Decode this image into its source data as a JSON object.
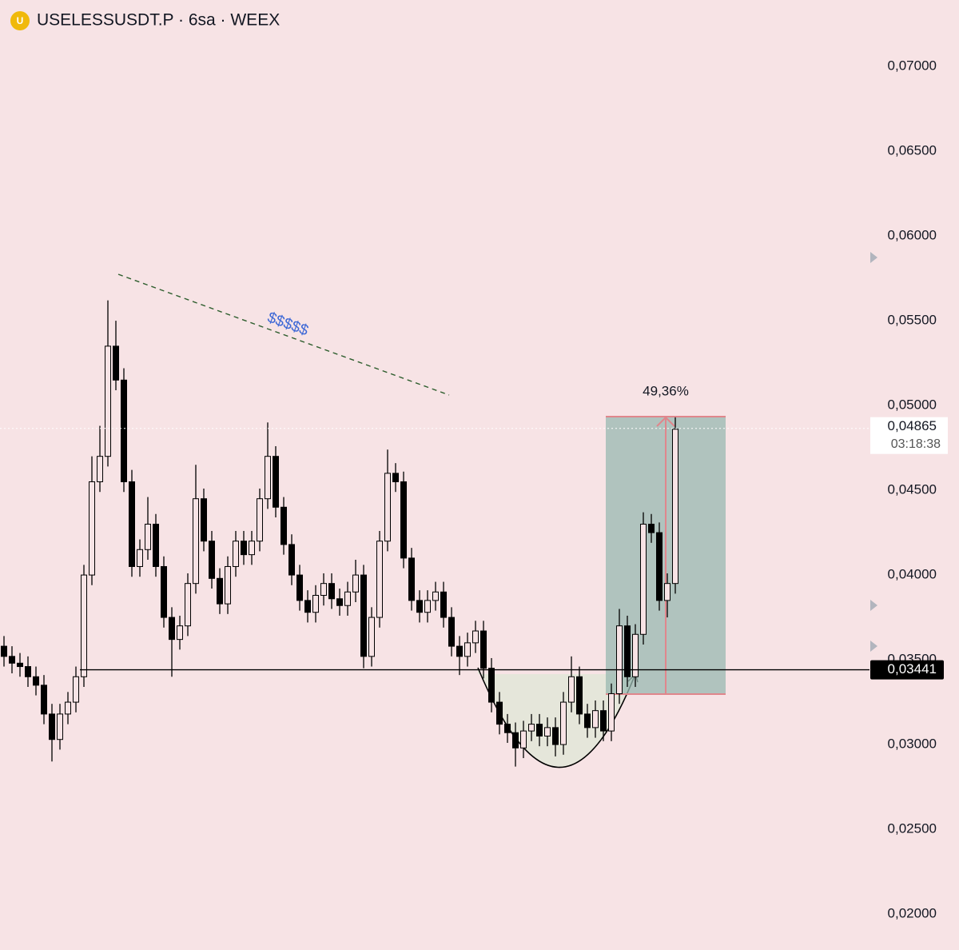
{
  "chart_data": {
    "type": "candlestick",
    "title": "USELESSUSDT.P · 6sa · WEEX",
    "ylim": [
      0.01788,
      0.07392
    ],
    "yticks": [
      {
        "value": 0.07,
        "label": "0,07000"
      },
      {
        "value": 0.065,
        "label": "0,06500"
      },
      {
        "value": 0.06,
        "label": "0,06000"
      },
      {
        "value": 0.055,
        "label": "0,05500"
      },
      {
        "value": 0.05,
        "label": "0,05000"
      },
      {
        "value": 0.045,
        "label": "0,04500"
      },
      {
        "value": 0.04,
        "label": "0,04000"
      },
      {
        "value": 0.035,
        "label": "0,03500"
      },
      {
        "value": 0.03,
        "label": "0,03000"
      },
      {
        "value": 0.025,
        "label": "0,02500"
      },
      {
        "value": 0.02,
        "label": "0,02000"
      }
    ],
    "up_color": "#f7e3e5",
    "down_color": "#000000",
    "open": [
      0.0358,
      0.0352,
      0.0348,
      0.0346,
      0.034,
      0.0335,
      0.0318,
      0.0303,
      0.0318,
      0.0325,
      0.034,
      0.04,
      0.0455,
      0.047,
      0.0535,
      0.0515,
      0.0455,
      0.0405,
      0.0415,
      0.043,
      0.0405,
      0.0375,
      0.0362,
      0.037,
      0.0395,
      0.0445,
      0.042,
      0.0398,
      0.0383,
      0.0405,
      0.042,
      0.0412,
      0.042,
      0.0445,
      0.047,
      0.044,
      0.0418,
      0.04,
      0.0385,
      0.0378,
      0.0388,
      0.0395,
      0.0386,
      0.0382,
      0.039,
      0.04,
      0.0352,
      0.0375,
      0.042,
      0.046,
      0.0455,
      0.041,
      0.0385,
      0.0378,
      0.0385,
      0.039,
      0.0375,
      0.0358,
      0.0352,
      0.036,
      0.0367,
      0.0345,
      0.0325,
      0.0312,
      0.0307,
      0.0298,
      0.0308,
      0.0312,
      0.0305,
      0.031,
      0.03,
      0.0325,
      0.034,
      0.0318,
      0.031,
      0.032,
      0.0308,
      0.033,
      0.037,
      0.034,
      0.0365,
      0.043,
      0.0425,
      0.0385,
      0.0395
    ],
    "high": [
      0.0364,
      0.0358,
      0.0354,
      0.0352,
      0.0346,
      0.0341,
      0.0324,
      0.0324,
      0.0331,
      0.0346,
      0.0406,
      0.047,
      0.0488,
      0.0562,
      0.055,
      0.0522,
      0.0462,
      0.0421,
      0.0446,
      0.0436,
      0.0411,
      0.0381,
      0.0376,
      0.0401,
      0.0465,
      0.0451,
      0.0426,
      0.0404,
      0.0411,
      0.0426,
      0.0426,
      0.0426,
      0.0451,
      0.049,
      0.0476,
      0.0446,
      0.0424,
      0.0406,
      0.0391,
      0.0394,
      0.0401,
      0.0401,
      0.0392,
      0.0396,
      0.0409,
      0.0406,
      0.0381,
      0.0426,
      0.0474,
      0.0466,
      0.0461,
      0.0416,
      0.0391,
      0.0391,
      0.0396,
      0.0396,
      0.0381,
      0.0364,
      0.0366,
      0.0373,
      0.0373,
      0.0351,
      0.0331,
      0.0318,
      0.0313,
      0.0314,
      0.0318,
      0.0318,
      0.0316,
      0.0316,
      0.0331,
      0.0352,
      0.0346,
      0.0324,
      0.0326,
      0.0326,
      0.0336,
      0.038,
      0.0376,
      0.0371,
      0.0437,
      0.0436,
      0.0431,
      0.0401,
      0.0493
    ],
    "low": [
      0.0346,
      0.0342,
      0.034,
      0.0334,
      0.0329,
      0.0312,
      0.029,
      0.0297,
      0.0312,
      0.0319,
      0.0334,
      0.0394,
      0.0449,
      0.0464,
      0.0509,
      0.0449,
      0.0399,
      0.0399,
      0.0409,
      0.0399,
      0.0369,
      0.034,
      0.0356,
      0.0364,
      0.0389,
      0.0414,
      0.0392,
      0.0377,
      0.0377,
      0.0399,
      0.0406,
      0.0406,
      0.0414,
      0.0439,
      0.0434,
      0.0412,
      0.0394,
      0.0379,
      0.0372,
      0.0372,
      0.0382,
      0.038,
      0.0376,
      0.0376,
      0.0384,
      0.0345,
      0.0346,
      0.0369,
      0.0414,
      0.0449,
      0.0404,
      0.0379,
      0.0372,
      0.0372,
      0.0379,
      0.0369,
      0.0352,
      0.0341,
      0.0346,
      0.0354,
      0.0339,
      0.0319,
      0.0306,
      0.0301,
      0.0287,
      0.0292,
      0.0302,
      0.0299,
      0.0299,
      0.0293,
      0.0294,
      0.0319,
      0.0312,
      0.0304,
      0.0304,
      0.0302,
      0.0302,
      0.0324,
      0.0334,
      0.0334,
      0.0359,
      0.0419,
      0.0379,
      0.0375,
      0.0389
    ],
    "close": [
      0.0352,
      0.0348,
      0.0346,
      0.034,
      0.0335,
      0.0318,
      0.0303,
      0.0318,
      0.0325,
      0.034,
      0.04,
      0.0455,
      0.047,
      0.0535,
      0.0515,
      0.0455,
      0.0405,
      0.0415,
      0.043,
      0.0405,
      0.0375,
      0.0362,
      0.037,
      0.0395,
      0.0445,
      0.042,
      0.0398,
      0.0383,
      0.0405,
      0.042,
      0.0412,
      0.042,
      0.0445,
      0.047,
      0.044,
      0.0418,
      0.04,
      0.0385,
      0.0378,
      0.0388,
      0.0395,
      0.0386,
      0.0382,
      0.039,
      0.04,
      0.0352,
      0.0375,
      0.042,
      0.046,
      0.0455,
      0.041,
      0.0385,
      0.0378,
      0.0385,
      0.039,
      0.0375,
      0.0358,
      0.0352,
      0.036,
      0.0367,
      0.0345,
      0.0325,
      0.0312,
      0.0307,
      0.0298,
      0.0308,
      0.0312,
      0.0305,
      0.031,
      0.03,
      0.0325,
      0.034,
      0.0318,
      0.031,
      0.032,
      0.0308,
      0.033,
      0.037,
      0.034,
      0.0365,
      0.043,
      0.0425,
      0.0385,
      0.0395,
      0.0486
    ],
    "current_price": {
      "value": 0.04865,
      "label": "0,04865",
      "countdown": "03:18:38"
    },
    "level": {
      "value": 0.03441,
      "label": "0,03441"
    },
    "annotations": {
      "dollars": "$$$$$",
      "gain": "49,36%"
    }
  }
}
